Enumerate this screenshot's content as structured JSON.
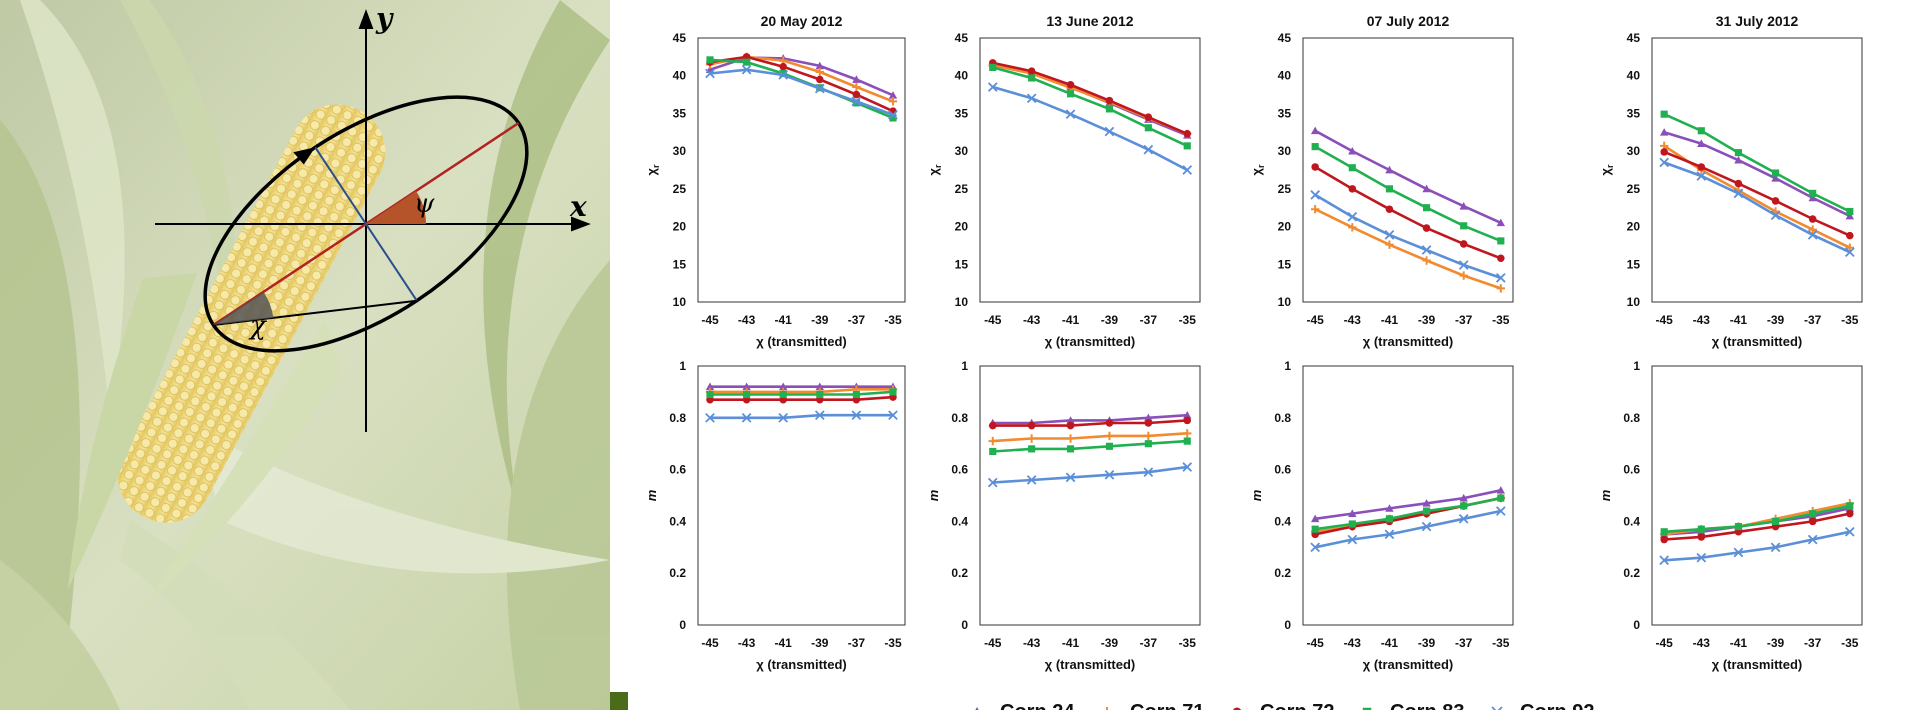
{
  "diagram": {
    "axis_x_label": "x",
    "axis_y_label": "y",
    "angle_psi": "ψ",
    "angle_chi": "χ"
  },
  "colors": {
    "Corn 24": "#8a4fb8",
    "Corn 71": "#f28a30",
    "Corn 72": "#c0171f",
    "Corn 83": "#20b050",
    "Corn 92": "#5b8fd8"
  },
  "legend": [
    {
      "name": "Corn 24",
      "marker": "triangle"
    },
    {
      "name": "Corn 71",
      "marker": "plus"
    },
    {
      "name": "Corn 72",
      "marker": "circle"
    },
    {
      "name": "Corn 83",
      "marker": "square"
    },
    {
      "name": "Corn 92",
      "marker": "x"
    }
  ],
  "chart_data": [
    {
      "type": "line",
      "title": "20 May 2012",
      "xlabel": "χ (transmitted)",
      "ylabel": "χr",
      "x": [
        -45,
        -43,
        -41,
        -39,
        -37,
        -35
      ],
      "ylim": [
        10,
        45
      ],
      "yticks": [
        10,
        15,
        20,
        25,
        30,
        35,
        40,
        45
      ],
      "series": [
        {
          "name": "Corn 24",
          "values": [
            40.8,
            42.4,
            42.3,
            41.3,
            39.5,
            37.4
          ]
        },
        {
          "name": "Corn 71",
          "values": [
            41.5,
            42.5,
            42.0,
            40.5,
            38.5,
            36.6
          ]
        },
        {
          "name": "Corn 72",
          "values": [
            41.8,
            42.5,
            41.2,
            39.5,
            37.5,
            35.3
          ]
        },
        {
          "name": "Corn 83",
          "values": [
            42.1,
            41.8,
            40.3,
            38.4,
            36.4,
            34.4
          ]
        },
        {
          "name": "Corn 92",
          "values": [
            40.3,
            40.8,
            40.1,
            38.3,
            36.6,
            34.8
          ]
        }
      ]
    },
    {
      "type": "line",
      "title": "13 June 2012",
      "xlabel": "χ (transmitted)",
      "ylabel": "χr",
      "x": [
        -45,
        -43,
        -41,
        -39,
        -37,
        -35
      ],
      "ylim": [
        10,
        45
      ],
      "yticks": [
        10,
        15,
        20,
        25,
        30,
        35,
        40,
        45
      ],
      "series": [
        {
          "name": "Corn 24",
          "values": [
            41.6,
            40.5,
            38.5,
            36.4,
            34.2,
            32.1
          ]
        },
        {
          "name": "Corn 71",
          "values": [
            41.4,
            40.3,
            38.4,
            36.5,
            34.4,
            32.3
          ]
        },
        {
          "name": "Corn 72",
          "values": [
            41.7,
            40.6,
            38.8,
            36.7,
            34.5,
            32.3
          ]
        },
        {
          "name": "Corn 83",
          "values": [
            41.1,
            39.7,
            37.6,
            35.6,
            33.1,
            30.7
          ]
        },
        {
          "name": "Corn 92",
          "values": [
            38.5,
            37.0,
            34.9,
            32.6,
            30.2,
            27.5
          ]
        }
      ]
    },
    {
      "type": "line",
      "title": "07 July 2012",
      "xlabel": "χ (transmitted)",
      "ylabel": "χr",
      "x": [
        -45,
        -43,
        -41,
        -39,
        -37,
        -35
      ],
      "ylim": [
        10,
        45
      ],
      "yticks": [
        10,
        15,
        20,
        25,
        30,
        35,
        40,
        45
      ],
      "series": [
        {
          "name": "Corn 24",
          "values": [
            32.7,
            30.0,
            27.5,
            25.0,
            22.7,
            20.5
          ]
        },
        {
          "name": "Corn 71",
          "values": [
            22.3,
            19.9,
            17.6,
            15.5,
            13.5,
            11.8
          ]
        },
        {
          "name": "Corn 72",
          "values": [
            27.9,
            25.0,
            22.3,
            19.8,
            17.7,
            15.8
          ]
        },
        {
          "name": "Corn 83",
          "values": [
            30.6,
            27.8,
            25.0,
            22.5,
            20.1,
            18.1
          ]
        },
        {
          "name": "Corn 92",
          "values": [
            24.2,
            21.3,
            18.9,
            16.9,
            14.9,
            13.2
          ]
        }
      ]
    },
    {
      "type": "line",
      "title": "31 July 2012",
      "xlabel": "χ (transmitted)",
      "ylabel": "χr",
      "x": [
        -45,
        -43,
        -41,
        -39,
        -37,
        -35
      ],
      "ylim": [
        10,
        45
      ],
      "yticks": [
        10,
        15,
        20,
        25,
        30,
        35,
        40,
        45
      ],
      "series": [
        {
          "name": "Corn 24",
          "values": [
            32.5,
            31.0,
            28.8,
            26.4,
            23.8,
            21.4
          ]
        },
        {
          "name": "Corn 71",
          "values": [
            30.7,
            27.5,
            24.8,
            22.0,
            19.6,
            17.2
          ]
        },
        {
          "name": "Corn 72",
          "values": [
            29.9,
            27.9,
            25.7,
            23.4,
            21.0,
            18.8
          ]
        },
        {
          "name": "Corn 83",
          "values": [
            34.9,
            32.7,
            29.8,
            27.1,
            24.4,
            22.0
          ]
        },
        {
          "name": "Corn 92",
          "values": [
            28.5,
            26.7,
            24.4,
            21.5,
            18.9,
            16.6
          ]
        }
      ]
    },
    {
      "type": "line",
      "title": "",
      "xlabel": "χ (transmitted)",
      "ylabel": "m",
      "x": [
        -45,
        -43,
        -41,
        -39,
        -37,
        -35
      ],
      "ylim": [
        0,
        1
      ],
      "yticks": [
        0,
        0.2,
        0.4,
        0.6,
        0.8,
        1
      ],
      "series": [
        {
          "name": "Corn 24",
          "values": [
            0.92,
            0.92,
            0.92,
            0.92,
            0.92,
            0.92
          ]
        },
        {
          "name": "Corn 71",
          "values": [
            0.9,
            0.9,
            0.9,
            0.9,
            0.91,
            0.91
          ]
        },
        {
          "name": "Corn 72",
          "values": [
            0.87,
            0.87,
            0.87,
            0.87,
            0.87,
            0.88
          ]
        },
        {
          "name": "Corn 83",
          "values": [
            0.89,
            0.89,
            0.89,
            0.89,
            0.89,
            0.9
          ]
        },
        {
          "name": "Corn 92",
          "values": [
            0.8,
            0.8,
            0.8,
            0.81,
            0.81,
            0.81
          ]
        }
      ]
    },
    {
      "type": "line",
      "title": "",
      "xlabel": "χ (transmitted)",
      "ylabel": "m",
      "x": [
        -45,
        -43,
        -41,
        -39,
        -37,
        -35
      ],
      "ylim": [
        0,
        1
      ],
      "yticks": [
        0,
        0.2,
        0.4,
        0.6,
        0.8,
        1
      ],
      "series": [
        {
          "name": "Corn 24",
          "values": [
            0.78,
            0.78,
            0.79,
            0.79,
            0.8,
            0.81
          ]
        },
        {
          "name": "Corn 71",
          "values": [
            0.71,
            0.72,
            0.72,
            0.73,
            0.73,
            0.74
          ]
        },
        {
          "name": "Corn 72",
          "values": [
            0.77,
            0.77,
            0.77,
            0.78,
            0.78,
            0.79
          ]
        },
        {
          "name": "Corn 83",
          "values": [
            0.67,
            0.68,
            0.68,
            0.69,
            0.7,
            0.71
          ]
        },
        {
          "name": "Corn 92",
          "values": [
            0.55,
            0.56,
            0.57,
            0.58,
            0.59,
            0.61
          ]
        }
      ]
    },
    {
      "type": "line",
      "title": "",
      "xlabel": "χ (transmitted)",
      "ylabel": "m",
      "x": [
        -45,
        -43,
        -41,
        -39,
        -37,
        -35
      ],
      "ylim": [
        0,
        1
      ],
      "yticks": [
        0,
        0.2,
        0.4,
        0.6,
        0.8,
        1
      ],
      "series": [
        {
          "name": "Corn 24",
          "values": [
            0.41,
            0.43,
            0.45,
            0.47,
            0.49,
            0.52
          ]
        },
        {
          "name": "Corn 71",
          "values": [
            0.36,
            0.38,
            0.41,
            0.43,
            0.46,
            0.49
          ]
        },
        {
          "name": "Corn 72",
          "values": [
            0.35,
            0.38,
            0.4,
            0.43,
            0.46,
            0.49
          ]
        },
        {
          "name": "Corn 83",
          "values": [
            0.37,
            0.39,
            0.41,
            0.44,
            0.46,
            0.49
          ]
        },
        {
          "name": "Corn 92",
          "values": [
            0.3,
            0.33,
            0.35,
            0.38,
            0.41,
            0.44
          ]
        }
      ]
    },
    {
      "type": "line",
      "title": "",
      "xlabel": "χ (transmitted)",
      "ylabel": "m",
      "x": [
        -45,
        -43,
        -41,
        -39,
        -37,
        -35
      ],
      "ylim": [
        0,
        1
      ],
      "yticks": [
        0,
        0.2,
        0.4,
        0.6,
        0.8,
        1
      ],
      "series": [
        {
          "name": "Corn 24",
          "values": [
            0.35,
            0.36,
            0.38,
            0.4,
            0.42,
            0.45
          ]
        },
        {
          "name": "Corn 71",
          "values": [
            0.35,
            0.37,
            0.38,
            0.41,
            0.44,
            0.47
          ]
        },
        {
          "name": "Corn 72",
          "values": [
            0.33,
            0.34,
            0.36,
            0.38,
            0.4,
            0.43
          ]
        },
        {
          "name": "Corn 83",
          "values": [
            0.36,
            0.37,
            0.38,
            0.4,
            0.43,
            0.46
          ]
        },
        {
          "name": "Corn 92",
          "values": [
            0.25,
            0.26,
            0.28,
            0.3,
            0.33,
            0.36
          ]
        }
      ]
    }
  ]
}
